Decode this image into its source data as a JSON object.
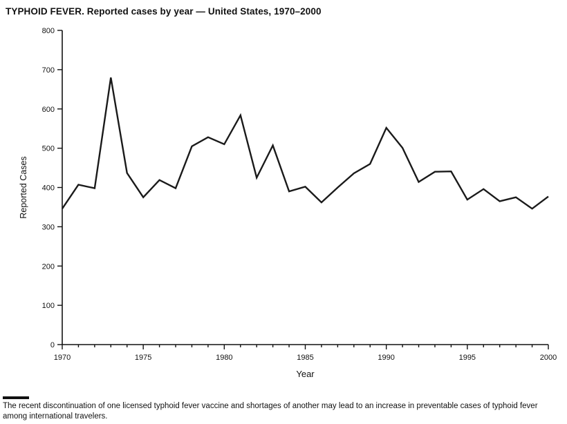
{
  "page": {
    "title": "TYPHOID FEVER. Reported cases by year — United States, 1970–2000",
    "footnote": "The recent discontinuation of one licensed typhoid fever vaccine and shortages of another may lead to an increase in preventable cases of typhoid fever among international travelers."
  },
  "chart_data": {
    "type": "line",
    "title": "TYPHOID FEVER. Reported cases by year — United States, 1970–2000",
    "xlabel": "Year",
    "ylabel": "Reported Cases",
    "xlim": [
      1970,
      2000
    ],
    "ylim": [
      0,
      800
    ],
    "y_ticks": [
      0,
      100,
      200,
      300,
      400,
      500,
      600,
      700,
      800
    ],
    "x_major_ticks": [
      1970,
      1975,
      1980,
      1985,
      1990,
      1995,
      2000
    ],
    "x_minor_step": 1,
    "grid": false,
    "legend_position": "none",
    "line_color": "#1a1a1a",
    "line_width": 2.4,
    "series": [
      {
        "name": "Reported cases",
        "x": [
          1970,
          1971,
          1972,
          1973,
          1974,
          1975,
          1976,
          1977,
          1978,
          1979,
          1980,
          1981,
          1982,
          1983,
          1984,
          1985,
          1986,
          1987,
          1988,
          1989,
          1990,
          1991,
          1992,
          1993,
          1994,
          1995,
          1996,
          1997,
          1998,
          1999,
          2000
        ],
        "values": [
          346,
          407,
          398,
          680,
          437,
          375,
          419,
          398,
          505,
          528,
          510,
          584,
          425,
          507,
          390,
          402,
          362,
          400,
          436,
          460,
          552,
          501,
          414,
          440,
          441,
          369,
          396,
          365,
          375,
          346,
          377
        ]
      }
    ]
  }
}
